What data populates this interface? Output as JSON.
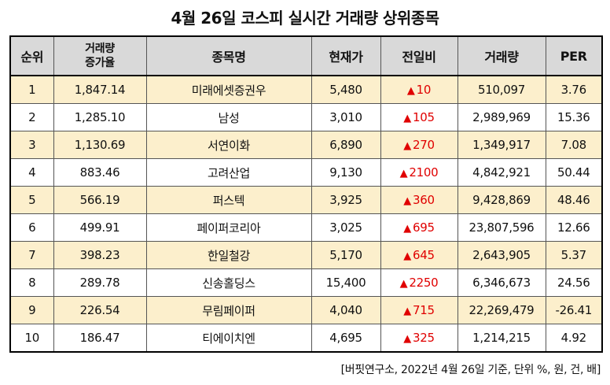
{
  "title": "4월 26일 코스피 실시간 거래량 상위종목",
  "headers": {
    "rank": "순위",
    "increase_l1": "거래량",
    "increase_l2": "증가율",
    "name": "종목명",
    "price": "현재가",
    "change": "전일비",
    "volume": "거래량",
    "per": "PER"
  },
  "triangle": "▲",
  "rows": [
    {
      "rank": "1",
      "increase": "1,847.14",
      "name": "미래에셋증권우",
      "price": "5,480",
      "change": "10",
      "volume": "510,097",
      "per": "3.76"
    },
    {
      "rank": "2",
      "increase": "1,285.10",
      "name": "남성",
      "price": "3,010",
      "change": "105",
      "volume": "2,989,969",
      "per": "15.36"
    },
    {
      "rank": "3",
      "increase": "1,130.69",
      "name": "서연이화",
      "price": "6,890",
      "change": "270",
      "volume": "1,349,917",
      "per": "7.08"
    },
    {
      "rank": "4",
      "increase": "883.46",
      "name": "고려산업",
      "price": "9,130",
      "change": "2100",
      "volume": "4,842,921",
      "per": "50.44"
    },
    {
      "rank": "5",
      "increase": "566.19",
      "name": "퍼스텍",
      "price": "3,925",
      "change": "360",
      "volume": "9,428,869",
      "per": "48.46"
    },
    {
      "rank": "6",
      "increase": "499.91",
      "name": "페이퍼코리아",
      "price": "3,025",
      "change": "695",
      "volume": "23,807,596",
      "per": "12.66"
    },
    {
      "rank": "7",
      "increase": "398.23",
      "name": "한일철강",
      "price": "5,170",
      "change": "645",
      "volume": "2,643,905",
      "per": "5.37"
    },
    {
      "rank": "8",
      "increase": "289.78",
      "name": "신송홀딩스",
      "price": "15,400",
      "change": "2250",
      "volume": "6,346,673",
      "per": "24.56"
    },
    {
      "rank": "9",
      "increase": "226.54",
      "name": "무림페이퍼",
      "price": "4,040",
      "change": "715",
      "volume": "22,269,479",
      "per": "-26.41"
    },
    {
      "rank": "10",
      "increase": "186.47",
      "name": "티에이치엔",
      "price": "4,695",
      "change": "325",
      "volume": "1,214,215",
      "per": "4.92"
    }
  ],
  "source_note": "[버핏연구소, 2022년 4월 26일 기준, 단위 %, 원, 건, 배]",
  "colors": {
    "header_bg": "#d9d9d9",
    "highlight_row_bg": "#fcefcc",
    "up_red": "#e00000"
  }
}
